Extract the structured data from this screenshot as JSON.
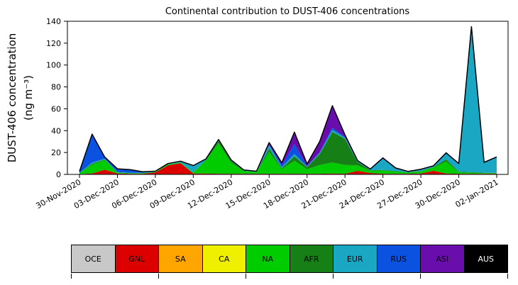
{
  "figure": {
    "title": "Continental contribution to DUST-406 concentrations",
    "ylabel_line1": "DUST-406 concentration",
    "ylabel_line2": "(ng m⁻³)"
  },
  "chart_data": {
    "type": "area",
    "stacked": true,
    "title": "Continental contribution to DUST-406 concentrations",
    "ylabel": "DUST-406 concentration (ng m⁻³)",
    "ylim": [
      0,
      140
    ],
    "yticks": [
      0,
      20,
      40,
      60,
      80,
      100,
      120,
      140
    ],
    "grid": false,
    "legend_position": "bottom",
    "outline_color": "#000000",
    "x_tick_labels": [
      "30-Nov-2020",
      "03-Dec-2020",
      "06-Dec-2020",
      "09-Dec-2020",
      "12-Dec-2020",
      "15-Dec-2020",
      "18-Dec-2020",
      "21-Dec-2020",
      "24-Dec-2020",
      "27-Dec-2020",
      "30-Dec-2020",
      "02-Jan-2021"
    ],
    "x_tick_indices": [
      0,
      3,
      6,
      9,
      12,
      15,
      18,
      21,
      24,
      27,
      30,
      33
    ],
    "dates": [
      "30-Nov-2020",
      "01-Dec-2020",
      "02-Dec-2020",
      "03-Dec-2020",
      "04-Dec-2020",
      "05-Dec-2020",
      "06-Dec-2020",
      "07-Dec-2020",
      "08-Dec-2020",
      "09-Dec-2020",
      "10-Dec-2020",
      "11-Dec-2020",
      "12-Dec-2020",
      "13-Dec-2020",
      "14-Dec-2020",
      "15-Dec-2020",
      "16-Dec-2020",
      "17-Dec-2020",
      "18-Dec-2020",
      "19-Dec-2020",
      "20-Dec-2020",
      "21-Dec-2020",
      "22-Dec-2020",
      "23-Dec-2020",
      "24-Dec-2020",
      "25-Dec-2020",
      "26-Dec-2020",
      "27-Dec-2020",
      "28-Dec-2020",
      "29-Dec-2020",
      "30-Dec-2020",
      "31-Dec-2020",
      "01-Jan-2021",
      "02-Jan-2021"
    ],
    "series": [
      {
        "name": "OCE",
        "color": "#c8c8c8",
        "values": [
          0.3,
          0.3,
          0.3,
          0.3,
          0.3,
          0.3,
          0.3,
          0.3,
          0.3,
          0.3,
          0.3,
          0.3,
          0.3,
          0.3,
          0.3,
          0.3,
          0.3,
          0.3,
          0.3,
          0.3,
          0.3,
          0.3,
          0.3,
          0.3,
          0.3,
          0.3,
          0.3,
          0.3,
          0.3,
          0.3,
          0.3,
          0.3,
          0.3,
          0.3
        ]
      },
      {
        "name": "GNL",
        "color": "#dd0000",
        "values": [
          0,
          0.5,
          4,
          0.5,
          0.3,
          0.3,
          1.5,
          8,
          10,
          0.5,
          0.5,
          0.3,
          0.3,
          0.3,
          0.3,
          0.3,
          0.3,
          0.3,
          0.3,
          0.3,
          0.5,
          0.3,
          3,
          1,
          0.3,
          0.3,
          0.3,
          0.5,
          3,
          0.5,
          0.3,
          0.3,
          0.3,
          0.3
        ]
      },
      {
        "name": "SA",
        "color": "#ffa500",
        "values": [
          0,
          0,
          0,
          0,
          0,
          0,
          0,
          0,
          0,
          0,
          0,
          0,
          0,
          0,
          0,
          0,
          0,
          0,
          0,
          0,
          0,
          0,
          0,
          0,
          0,
          0,
          0,
          0,
          0,
          0,
          0,
          0,
          0,
          0
        ]
      },
      {
        "name": "CA",
        "color": "#eef000",
        "values": [
          0,
          0,
          0,
          0,
          0,
          0,
          0,
          0,
          0,
          0,
          0,
          0,
          0,
          0,
          0,
          0,
          0,
          0,
          0,
          0,
          0,
          0,
          0,
          0,
          0,
          0,
          0,
          0,
          0,
          0,
          0,
          0,
          0,
          0
        ]
      },
      {
        "name": "NA",
        "color": "#00cc00",
        "values": [
          1,
          8,
          9,
          1,
          0.5,
          0.5,
          0.5,
          1,
          0.5,
          1,
          12,
          28,
          10,
          2.5,
          1.5,
          20,
          4,
          12,
          4,
          8,
          10,
          8,
          5,
          2,
          3,
          2,
          1,
          2,
          3,
          11,
          1.5,
          1,
          0.5,
          0.5
        ]
      },
      {
        "name": "AFR",
        "color": "#168016",
        "values": [
          0,
          1,
          0.5,
          0,
          0,
          0,
          0,
          0,
          0,
          0,
          0.5,
          2,
          1.5,
          0.3,
          0,
          3,
          1,
          4,
          2,
          10,
          28,
          24,
          3,
          0.5,
          0.5,
          0.5,
          0.3,
          0.3,
          0.5,
          2,
          0.3,
          0.5,
          0.3,
          0.3
        ]
      },
      {
        "name": "EUR",
        "color": "#19a7c4",
        "values": [
          0,
          1,
          0.5,
          0.3,
          0.3,
          0.3,
          0.3,
          0.3,
          1,
          6,
          0.5,
          0.5,
          0.5,
          0.3,
          0.5,
          3,
          1,
          2,
          0.5,
          1,
          2,
          1,
          0.5,
          0.5,
          10,
          2,
          0.5,
          1,
          0.5,
          5,
          7,
          131,
          9,
          14
        ]
      },
      {
        "name": "RUS",
        "color": "#0b52e0",
        "values": [
          1.5,
          26,
          1.5,
          3,
          3,
          1,
          0.3,
          0.3,
          0.3,
          0.3,
          0.3,
          0.3,
          0.3,
          0.3,
          0.3,
          0.5,
          2,
          9,
          0.5,
          0.5,
          2,
          0.5,
          0.3,
          0.3,
          0.5,
          0.5,
          0.3,
          0.3,
          0.3,
          0.5,
          0.3,
          1,
          0.3,
          0.3
        ]
      },
      {
        "name": "ASI",
        "color": "#6a0dad",
        "values": [
          0,
          0,
          0,
          0,
          0,
          0,
          0,
          0,
          0,
          0,
          0,
          0.5,
          0.3,
          0,
          0,
          2,
          2,
          11,
          2,
          10,
          20,
          2,
          0.5,
          0.3,
          0.5,
          0.3,
          0,
          0.3,
          0.3,
          0.5,
          0.3,
          1,
          0.3,
          0.3
        ]
      },
      {
        "name": "AUS",
        "color": "#000000",
        "values": [
          0,
          0,
          0,
          0,
          0,
          0,
          0,
          0,
          0,
          0,
          0,
          0,
          0,
          0,
          0,
          0,
          0,
          0,
          0,
          0,
          0,
          0,
          0,
          0,
          0,
          0,
          0,
          0,
          0,
          0,
          0,
          0,
          0,
          0
        ]
      }
    ]
  },
  "legend": {
    "items": [
      {
        "label": "OCE",
        "color": "#c8c8c8",
        "text_color": "#000000"
      },
      {
        "label": "GNL",
        "color": "#dd0000",
        "text_color": "#000000"
      },
      {
        "label": "SA",
        "color": "#ffa500",
        "text_color": "#000000"
      },
      {
        "label": "CA",
        "color": "#eef000",
        "text_color": "#000000"
      },
      {
        "label": "NA",
        "color": "#00cc00",
        "text_color": "#000000"
      },
      {
        "label": "AFR",
        "color": "#168016",
        "text_color": "#000000"
      },
      {
        "label": "EUR",
        "color": "#19a7c4",
        "text_color": "#000000"
      },
      {
        "label": "RUS",
        "color": "#0b52e0",
        "text_color": "#000000"
      },
      {
        "label": "ASI",
        "color": "#6a0dad",
        "text_color": "#000000"
      },
      {
        "label": "AUS",
        "color": "#000000",
        "text_color": "#ffffff"
      }
    ]
  }
}
